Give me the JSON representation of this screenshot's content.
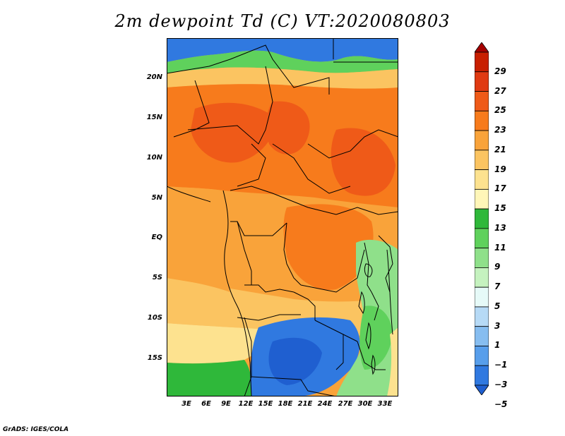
{
  "title": "2m dewpoint Td (C) VT:2020080803",
  "footer": "GrADS: IGES/COLA",
  "lat_labels": [
    "20N",
    "15N",
    "10N",
    "5N",
    "EQ",
    "5S",
    "10S",
    "15S"
  ],
  "lon_labels": [
    "3E",
    "6E",
    "9E",
    "12E",
    "15E",
    "18E",
    "21E",
    "24E",
    "27E",
    "30E",
    "33E"
  ],
  "colorbar": {
    "labels": [
      "29",
      "27",
      "25",
      "23",
      "21",
      "19",
      "17",
      "15",
      "13",
      "11",
      "9",
      "7",
      "5",
      "3",
      "1",
      "−1",
      "−3",
      "−5"
    ],
    "colors": [
      "#a50000",
      "#c81f00",
      "#e03a12",
      "#ef5a18",
      "#f77b1c",
      "#f9a33a",
      "#fbc461",
      "#fde28f",
      "#fff6b8",
      "#2fb83a",
      "#5fd15c",
      "#8fe08a",
      "#c5f2bf",
      "#e6faf8",
      "#b6daf6",
      "#86bdf0",
      "#579eeb",
      "#3079e0",
      "#1f5fd0"
    ]
  },
  "chart_data": {
    "type": "heatmap",
    "title": "2m dewpoint Td (C) VT:2020080803",
    "variable": "2m dewpoint Td (C)",
    "valid_time": "2020080803",
    "lon_range": [
      0,
      35
    ],
    "lat_range": [
      -19,
      25
    ],
    "color_scale_min": -5,
    "color_scale_max": 29,
    "color_scale_step": 2
  }
}
